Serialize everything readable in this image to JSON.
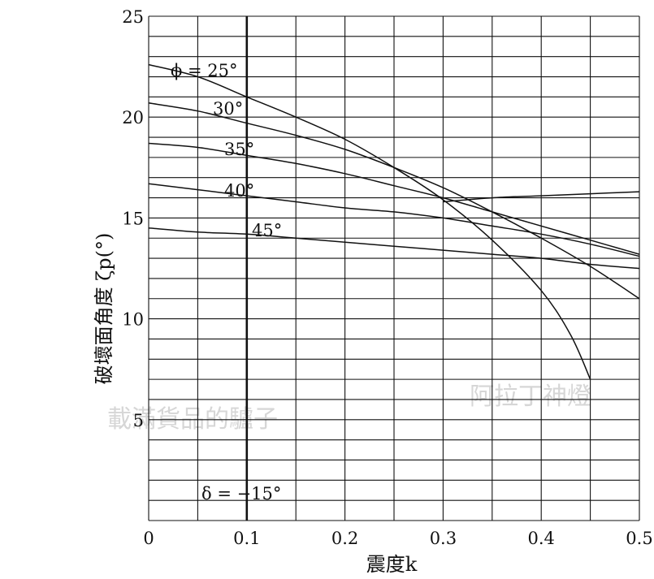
{
  "chart_data": {
    "type": "line",
    "xlabel": "震度k",
    "ylabel": "破壞面角度 ζp(°)",
    "xlim": [
      0,
      0.5
    ],
    "ylim": [
      0,
      25
    ],
    "x_ticks": [
      "0",
      "0.1",
      "0.2",
      "0.3",
      "0.4",
      "0.5"
    ],
    "y_ticks": [
      "5",
      "10",
      "15",
      "20",
      "25"
    ],
    "grid": true,
    "annotation": "δ = −15°",
    "series": [
      {
        "name": "ϕ = 25°",
        "x": [
          0,
          0.05,
          0.1,
          0.15,
          0.2,
          0.25,
          0.3,
          0.35,
          0.4,
          0.43,
          0.45
        ],
        "y": [
          22.6,
          22.0,
          21.0,
          20.0,
          18.9,
          17.5,
          15.9,
          13.9,
          11.4,
          9.2,
          7.0
        ]
      },
      {
        "name": "30°",
        "x": [
          0,
          0.05,
          0.1,
          0.15,
          0.2,
          0.25,
          0.3,
          0.35,
          0.4,
          0.45,
          0.5
        ],
        "y": [
          20.7,
          20.3,
          19.7,
          19.1,
          18.4,
          17.5,
          16.5,
          15.3,
          14.0,
          12.6,
          11.0
        ]
      },
      {
        "name": "35°",
        "x": [
          0,
          0.05,
          0.1,
          0.15,
          0.2,
          0.25,
          0.3,
          0.35,
          0.4,
          0.45,
          0.5
        ],
        "y": [
          18.7,
          18.5,
          18.1,
          17.7,
          17.2,
          16.6,
          16.0,
          15.3,
          14.6,
          13.9,
          13.2
        ]
      },
      {
        "name": "40°",
        "x": [
          0,
          0.05,
          0.1,
          0.15,
          0.2,
          0.25,
          0.3,
          0.35,
          0.4,
          0.45,
          0.5
        ],
        "y": [
          16.7,
          16.4,
          16.1,
          15.8,
          15.5,
          15.3,
          15.0,
          14.6,
          14.2,
          13.7,
          13.1
        ]
      },
      {
        "name": "45°",
        "x": [
          0,
          0.05,
          0.1,
          0.15,
          0.2,
          0.25,
          0.3,
          0.35,
          0.4,
          0.45,
          0.5
        ],
        "y": [
          14.5,
          14.3,
          14.2,
          14.0,
          13.8,
          13.6,
          13.4,
          13.2,
          13.0,
          12.7,
          12.5
        ]
      },
      {
        "name": "",
        "x": [
          0.3,
          0.35,
          0.4,
          0.45,
          0.5
        ],
        "y": [
          15.8,
          16.0,
          16.1,
          16.2,
          16.3
        ]
      }
    ]
  },
  "watermark": {
    "left": "載滿貨品的驢子",
    "right": "阿拉丁神燈"
  }
}
